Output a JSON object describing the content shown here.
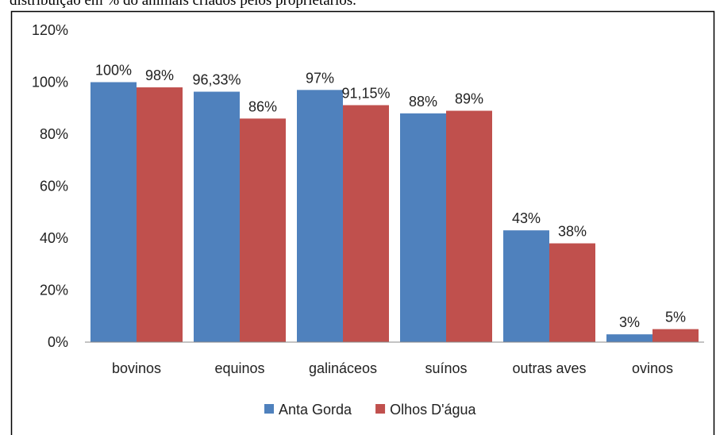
{
  "chart_data": {
    "type": "bar",
    "title": "distribuição em % do animais criados pelos proprietários.",
    "categories": [
      "bovinos",
      "equinos",
      "galináceos",
      "suínos",
      "outras aves",
      "ovinos"
    ],
    "series": [
      {
        "name": "Anta Gorda",
        "color": "#4f81bd",
        "values": [
          100,
          96.33,
          97,
          88,
          43,
          3
        ],
        "value_labels": [
          "100%",
          "96,33%",
          "97%",
          "88%",
          "43%",
          "3%"
        ]
      },
      {
        "name": "Olhos D'água",
        "color": "#c0504d",
        "values": [
          98,
          86,
          91.15,
          89,
          38,
          5
        ],
        "value_labels": [
          "98%",
          "86%",
          "91,15%",
          "89%",
          "38%",
          "5%"
        ]
      }
    ],
    "ylim": [
      0,
      120
    ],
    "yticks": [
      {
        "value": 0,
        "label": "0%"
      },
      {
        "value": 20,
        "label": "20%"
      },
      {
        "value": 40,
        "label": "40%"
      },
      {
        "value": 60,
        "label": "60%"
      },
      {
        "value": 80,
        "label": "80%"
      },
      {
        "value": 100,
        "label": "100%"
      },
      {
        "value": 120,
        "label": "120%"
      }
    ],
    "grid": false,
    "legend": "bottom"
  }
}
